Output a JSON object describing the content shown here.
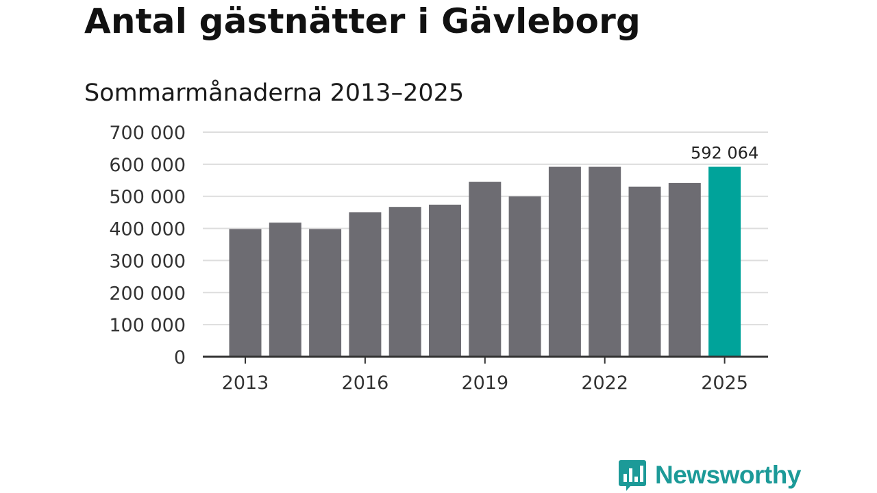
{
  "header": {
    "title": "Antal gästnätter i Gävleborg",
    "subtitle": "Sommarmånaderna 2013–2025"
  },
  "brand": {
    "name": "Newsworthy",
    "color": "#1c9a98",
    "icon": "bar-chart-bubble-icon"
  },
  "colors": {
    "bar": "#6d6c72",
    "highlight": "#00a39a",
    "grid": "#dddddd",
    "axis": "#333333"
  },
  "chart_data": {
    "type": "bar",
    "title": "Antal gästnätter i Gävleborg",
    "subtitle": "Sommarmånaderna 2013–2025",
    "categories": [
      "2013",
      "2014",
      "2015",
      "2016",
      "2017",
      "2018",
      "2019",
      "2020",
      "2021",
      "2022",
      "2023",
      "2024",
      "2025"
    ],
    "values": [
      398000,
      418000,
      398000,
      450000,
      467000,
      474000,
      545000,
      500000,
      592000,
      592000,
      530000,
      542000,
      592064
    ],
    "highlight_index": 12,
    "data_label": {
      "index": 12,
      "text": "592 064"
    },
    "x_tick_labels": [
      "2013",
      "2016",
      "2019",
      "2022",
      "2025"
    ],
    "y_ticks": [
      0,
      100000,
      200000,
      300000,
      400000,
      500000,
      600000,
      700000
    ],
    "y_tick_labels": [
      "0",
      "100 000",
      "200 000",
      "300 000",
      "400 000",
      "500 000",
      "600 000",
      "700 000"
    ],
    "ylim": [
      0,
      700000
    ],
    "xlabel": "",
    "ylabel": "",
    "grid": true,
    "legend": "none"
  }
}
